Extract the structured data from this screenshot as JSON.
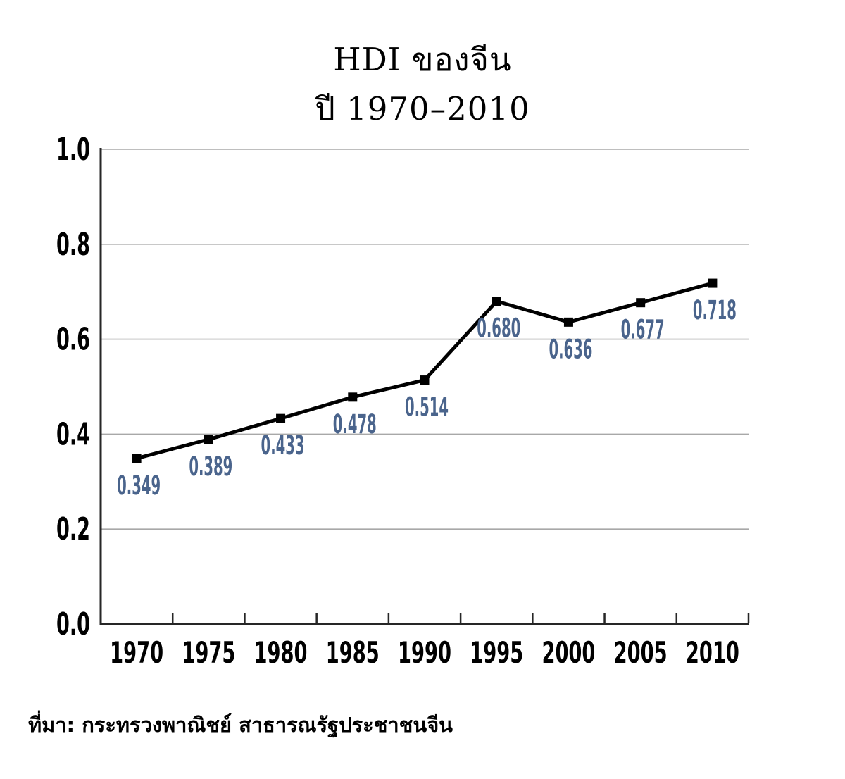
{
  "title": "HDI ของจีน",
  "subtitle": "ปี 1970–2010",
  "source": "ที่มา: กระทรวงพาณิชย์ สาธารณรัฐประชาชนจีน",
  "chart_data": {
    "type": "line",
    "title": "HDI ของจีน ปี 1970–2010",
    "xlabel": "",
    "ylabel": "",
    "categories": [
      "1970",
      "1975",
      "1980",
      "1985",
      "1990",
      "1995",
      "2000",
      "2005",
      "2010"
    ],
    "series": [
      {
        "name": "HDI",
        "values": [
          0.349,
          0.389,
          0.433,
          0.478,
          0.514,
          0.68,
          0.636,
          0.677,
          0.718
        ]
      }
    ],
    "value_labels": [
      "0.349",
      "0.389",
      "0.433",
      "0.478",
      "0.514",
      "0.680",
      "0.636",
      "0.677",
      "0.718"
    ],
    "y_ticks": [
      "0.0",
      "0.2",
      "0.4",
      "0.6",
      "0.8",
      "1.0"
    ],
    "ylim": [
      0.0,
      1.0
    ],
    "grid": "horizontal-gridlines",
    "legend": "none",
    "marker": "square",
    "colors": {
      "line": "#000000",
      "marker": "#000000",
      "data_label": "#4a648c",
      "gridline": "#a8a8a8",
      "axis": "#262626",
      "tick_label": "#000000"
    }
  }
}
